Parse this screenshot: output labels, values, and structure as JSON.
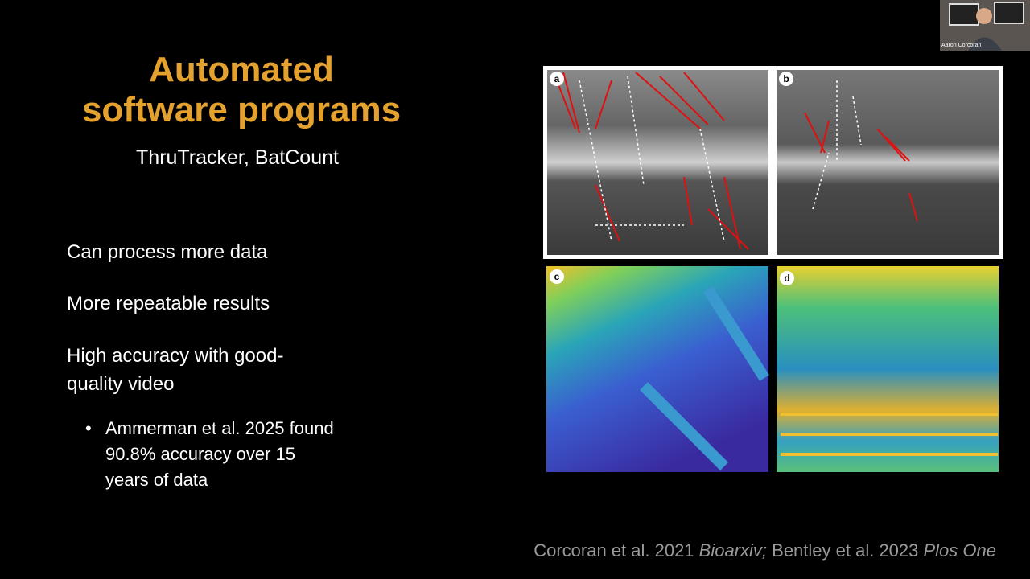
{
  "slide": {
    "title_lines": [
      "Automated",
      "software programs"
    ],
    "subtitle": "ThruTracker, BatCount",
    "points": [
      {
        "lines": [
          "Can process more data"
        ]
      },
      {
        "lines": [
          "More repeatable results"
        ]
      },
      {
        "lines": [
          "High accuracy with good-",
          "quality video"
        ]
      }
    ],
    "sub_point": {
      "lines": [
        "Ammerman et al. 2025 found",
        "90.8% accuracy over 15",
        "years of data"
      ]
    },
    "panels": [
      "a",
      "b",
      "c",
      "d"
    ],
    "citation": {
      "parts": [
        {
          "text": "Corcoran et al. 2021 "
        },
        {
          "text": "Bioarxiv;",
          "italic": true
        },
        {
          "text": " Bentley et al. 2023 "
        },
        {
          "text": "Plos One",
          "italic": true
        }
      ]
    },
    "webcam_name": "Aaron Corcoran"
  }
}
